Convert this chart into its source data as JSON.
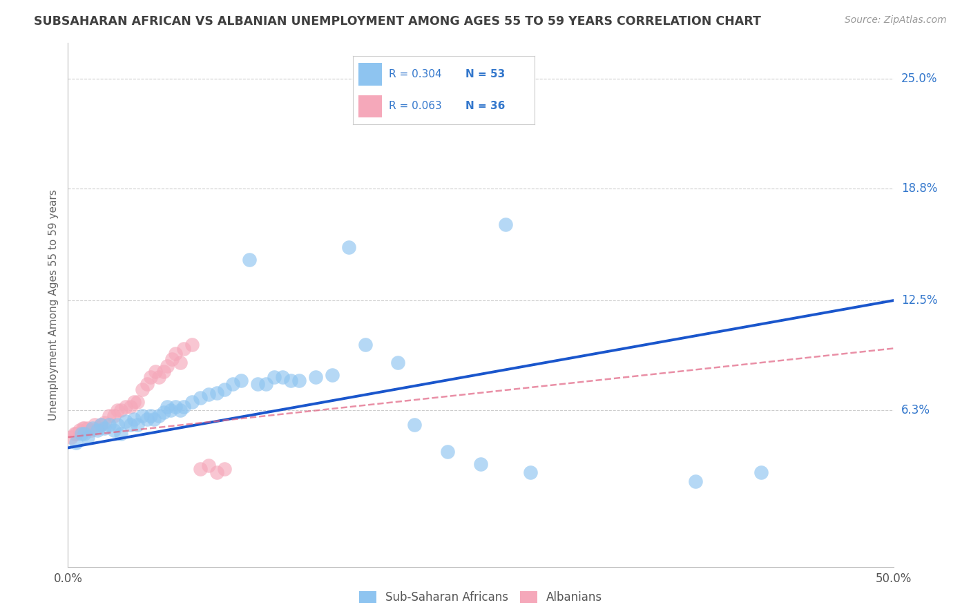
{
  "title": "SUBSAHARAN AFRICAN VS ALBANIAN UNEMPLOYMENT AMONG AGES 55 TO 59 YEARS CORRELATION CHART",
  "source": "Source: ZipAtlas.com",
  "ylabel": "Unemployment Among Ages 55 to 59 years",
  "xlim": [
    0.0,
    0.5
  ],
  "ylim": [
    -0.025,
    0.27
  ],
  "ytick_labels_right": [
    "25.0%",
    "18.8%",
    "12.5%",
    "6.3%"
  ],
  "ytick_values_right": [
    0.25,
    0.188,
    0.125,
    0.063
  ],
  "blue_color": "#8ec4f0",
  "pink_color": "#f5a8ba",
  "blue_line_color": "#1a56cc",
  "pink_line_color": "#e06080",
  "title_color": "#404040",
  "source_color": "#999999",
  "right_label_color": "#3377cc",
  "grid_color": "#cccccc",
  "background_color": "#ffffff",
  "blue_scatter_x": [
    0.005,
    0.008,
    0.01,
    0.012,
    0.015,
    0.018,
    0.02,
    0.022,
    0.025,
    0.028,
    0.03,
    0.032,
    0.035,
    0.038,
    0.04,
    0.042,
    0.045,
    0.048,
    0.05,
    0.052,
    0.055,
    0.058,
    0.06,
    0.062,
    0.065,
    0.068,
    0.07,
    0.075,
    0.08,
    0.085,
    0.09,
    0.095,
    0.1,
    0.105,
    0.11,
    0.115,
    0.12,
    0.125,
    0.13,
    0.135,
    0.14,
    0.15,
    0.16,
    0.17,
    0.18,
    0.2,
    0.21,
    0.23,
    0.25,
    0.265,
    0.28,
    0.38,
    0.42
  ],
  "blue_scatter_y": [
    0.045,
    0.05,
    0.05,
    0.048,
    0.053,
    0.052,
    0.055,
    0.053,
    0.055,
    0.052,
    0.055,
    0.05,
    0.057,
    0.055,
    0.058,
    0.055,
    0.06,
    0.058,
    0.06,
    0.058,
    0.06,
    0.062,
    0.065,
    0.063,
    0.065,
    0.063,
    0.065,
    0.068,
    0.07,
    0.072,
    0.073,
    0.075,
    0.078,
    0.08,
    0.148,
    0.078,
    0.078,
    0.082,
    0.082,
    0.08,
    0.08,
    0.082,
    0.083,
    0.155,
    0.1,
    0.09,
    0.055,
    0.04,
    0.033,
    0.168,
    0.028,
    0.023,
    0.028
  ],
  "pink_scatter_x": [
    0.002,
    0.004,
    0.005,
    0.007,
    0.009,
    0.01,
    0.012,
    0.014,
    0.016,
    0.018,
    0.02,
    0.022,
    0.025,
    0.028,
    0.03,
    0.032,
    0.035,
    0.038,
    0.04,
    0.042,
    0.045,
    0.048,
    0.05,
    0.053,
    0.055,
    0.058,
    0.06,
    0.063,
    0.065,
    0.068,
    0.07,
    0.075,
    0.08,
    0.085,
    0.09,
    0.095
  ],
  "pink_scatter_y": [
    0.048,
    0.05,
    0.05,
    0.052,
    0.053,
    0.053,
    0.053,
    0.052,
    0.055,
    0.053,
    0.055,
    0.056,
    0.06,
    0.06,
    0.063,
    0.063,
    0.065,
    0.065,
    0.068,
    0.068,
    0.075,
    0.078,
    0.082,
    0.085,
    0.082,
    0.085,
    0.088,
    0.092,
    0.095,
    0.09,
    0.098,
    0.1,
    0.03,
    0.032,
    0.028,
    0.03
  ],
  "blue_line_x": [
    0.0,
    0.5
  ],
  "blue_line_y": [
    0.042,
    0.125
  ],
  "pink_line_x": [
    0.0,
    0.5
  ],
  "pink_line_y": [
    0.048,
    0.098
  ],
  "legend_items": [
    {
      "color": "#8ec4f0",
      "r": "R = 0.304",
      "n": "N = 53",
      "text_color": "#3377cc"
    },
    {
      "color": "#f5a8ba",
      "r": "R = 0.063",
      "n": "N = 36",
      "text_color": "#3377cc"
    }
  ],
  "bottom_legend": [
    "Sub-Saharan Africans",
    "Albanians"
  ]
}
